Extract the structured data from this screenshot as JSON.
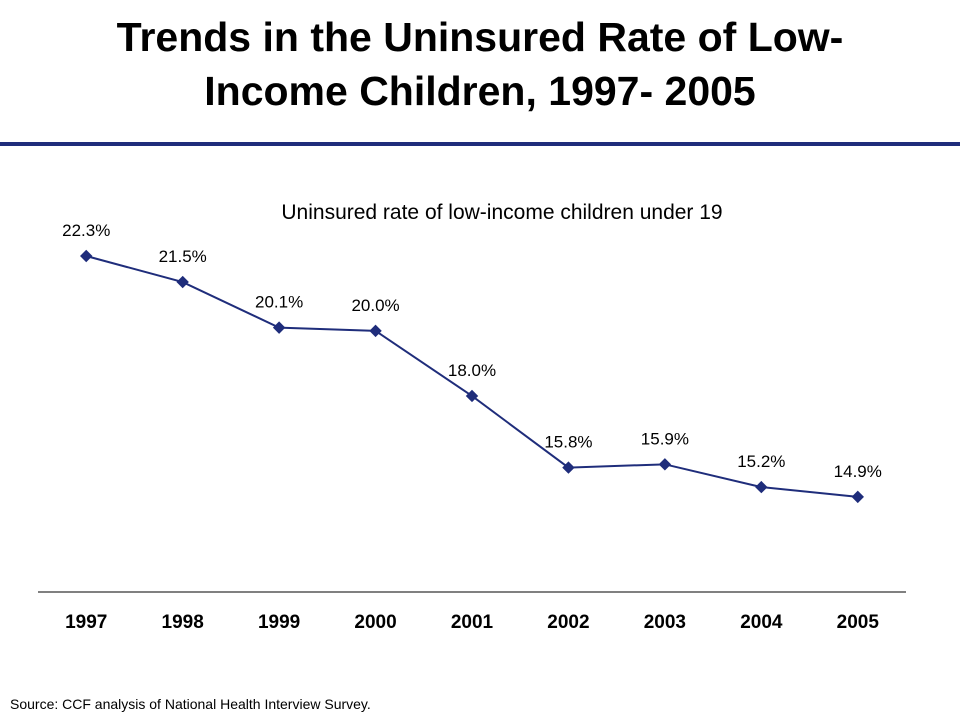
{
  "slide": {
    "title": "Trends in the Uninsured Rate of Low-Income Children, 1997- 2005",
    "title_line1": "Trends in the Uninsured Rate of Low-",
    "title_line2": "Income Children, 1997- 2005",
    "source": "Source: CCF analysis of National Health Interview Survey."
  },
  "colors": {
    "series": "#1f2d7b",
    "rule": "#1f2d7b",
    "axis": "#000000"
  },
  "chart_data": {
    "type": "line",
    "title": "Uninsured rate of low-income children under 19",
    "categories": [
      "1997",
      "1998",
      "1999",
      "2000",
      "2001",
      "2002",
      "2003",
      "2004",
      "2005"
    ],
    "series": [
      {
        "values": [
          22.3,
          21.5,
          20.1,
          20.0,
          18.0,
          15.8,
          15.9,
          15.2,
          14.9
        ],
        "labels": [
          "22.3%",
          "21.5%",
          "20.1%",
          "20.0%",
          "18.0%",
          "15.8%",
          "15.9%",
          "15.2%",
          "14.9%"
        ],
        "marker": "diamond"
      }
    ],
    "xlabel": "",
    "ylabel": "",
    "y_axis_visible": false,
    "grid": false,
    "legend": "none"
  }
}
